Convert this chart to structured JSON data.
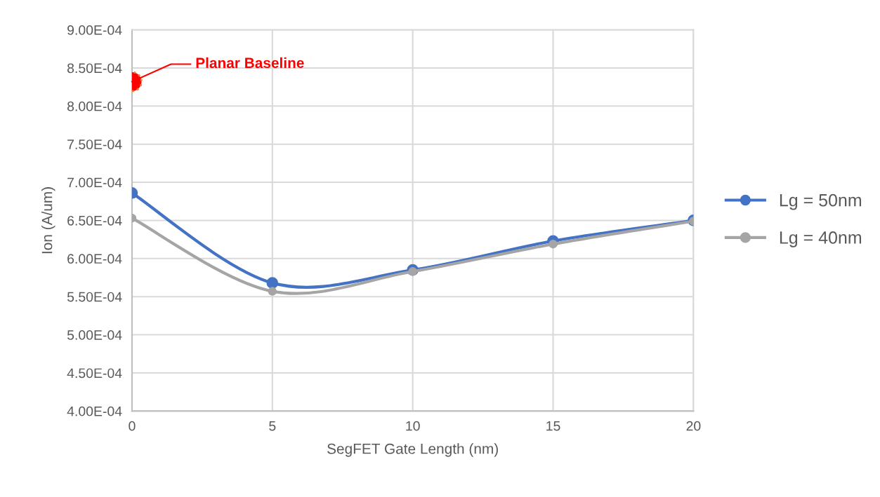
{
  "chart_data": {
    "type": "line",
    "xlabel": "SegFET Gate Length (nm)",
    "ylabel": "Ion (A/um)",
    "x": [
      0,
      5,
      10,
      15,
      20
    ],
    "series": [
      {
        "name": "Lg = 50nm",
        "color": "#4472c4",
        "values": [
          0.000686,
          0.000568,
          0.000585,
          0.000623,
          0.00065
        ]
      },
      {
        "name": "Lg = 40nm",
        "color": "#a5a5a5",
        "values": [
          0.000653,
          0.000557,
          0.000583,
          0.000619,
          0.000649
        ]
      },
      {
        "name": "Planar Baseline",
        "type": "scatter",
        "color": "#ff0000",
        "x": [
          0
        ],
        "values": [
          0.000832
        ]
      }
    ],
    "xlim": [
      0,
      20
    ],
    "xticks": [
      0,
      5,
      10,
      15,
      20
    ],
    "ylim": [
      0.0004,
      0.0009
    ],
    "yticks": [
      {
        "value": 0.0004,
        "label": "4.00E-04"
      },
      {
        "value": 0.00045,
        "label": "4.50E-04"
      },
      {
        "value": 0.0005,
        "label": "5.00E-04"
      },
      {
        "value": 0.00055,
        "label": "5.50E-04"
      },
      {
        "value": 0.0006,
        "label": "6.00E-04"
      },
      {
        "value": 0.00065,
        "label": "6.50E-04"
      },
      {
        "value": 0.0007,
        "label": "7.00E-04"
      },
      {
        "value": 0.00075,
        "label": "7.50E-04"
      },
      {
        "value": 0.0008,
        "label": "8.00E-04"
      },
      {
        "value": 0.00085,
        "label": "8.50E-04"
      },
      {
        "value": 0.0009,
        "label": "9.00E-04"
      }
    ],
    "grid": true,
    "legend": "right",
    "marker": "circle",
    "line_style": "solid"
  }
}
